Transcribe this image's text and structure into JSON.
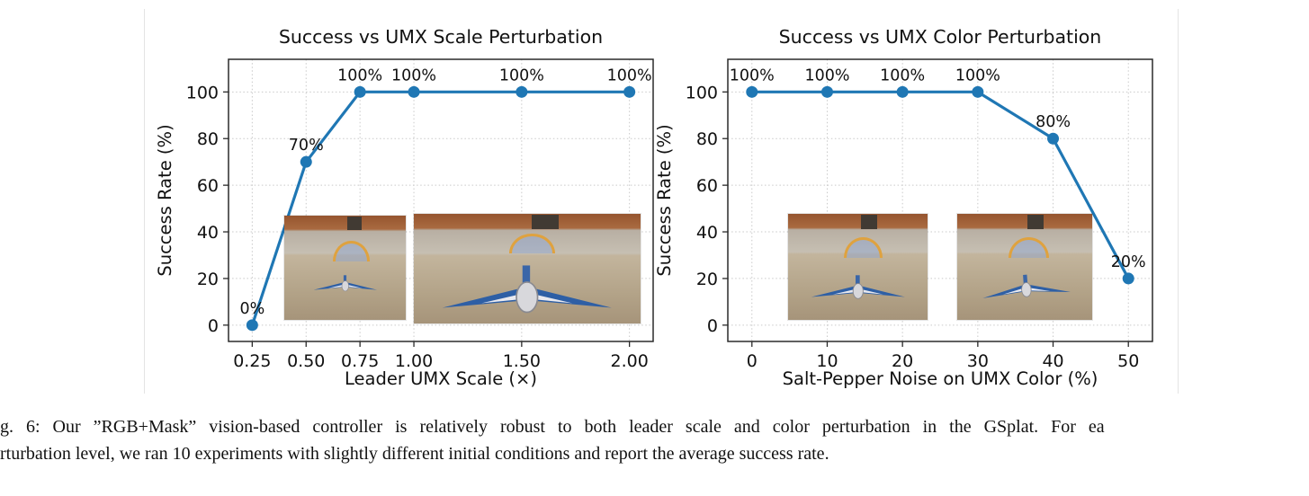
{
  "caption": {
    "line1": "g. 6: Our ”RGB+Mask” vision-based controller is relatively robust to both leader scale and color perturbation in the GSplat. For ea",
    "line2": "rturbation level, we ran 10 experiments with slightly different initial conditions and report the average success rate."
  },
  "chart_data": [
    {
      "type": "line",
      "title": "Success vs UMX Scale Perturbation",
      "xlabel": "Leader UMX Scale (×)",
      "ylabel": "Success Rate (%)",
      "x": [
        0.25,
        0.5,
        0.75,
        1.0,
        1.5,
        2.0
      ],
      "values": [
        0,
        70,
        100,
        100,
        100,
        100
      ],
      "point_labels": [
        "0%",
        "70%",
        "100%",
        "100%",
        "100%",
        "100%"
      ],
      "xticks": [
        0.25,
        0.5,
        0.75,
        1.0,
        1.5,
        2.0
      ],
      "xtick_labels": [
        "0.25",
        "0.50",
        "0.75",
        "1.00",
        "1.50",
        "2.00"
      ],
      "yticks": [
        0,
        20,
        40,
        60,
        80,
        100
      ],
      "ytick_labels": [
        "0",
        "20",
        "40",
        "60",
        "80",
        "100"
      ],
      "xlim": [
        0.14,
        2.11
      ],
      "ylim": [
        -7,
        114
      ],
      "line_color": "#1f77b4",
      "grid": true,
      "legend": null
    },
    {
      "type": "line",
      "title": "Success vs UMX Color Perturbation",
      "xlabel": "Salt-Pepper Noise on UMX Color (%)",
      "ylabel": "Success Rate (%)",
      "x": [
        0,
        10,
        20,
        30,
        40,
        50
      ],
      "values": [
        100,
        100,
        100,
        100,
        80,
        20
      ],
      "point_labels": [
        "100%",
        "100%",
        "100%",
        "100%",
        "80%",
        "20%"
      ],
      "xticks": [
        0,
        10,
        20,
        30,
        40,
        50
      ],
      "xtick_labels": [
        "0",
        "10",
        "20",
        "30",
        "40",
        "50"
      ],
      "yticks": [
        0,
        20,
        40,
        60,
        80,
        100
      ],
      "ytick_labels": [
        "0",
        "20",
        "40",
        "60",
        "80",
        "100"
      ],
      "xlim": [
        -3.2,
        53.2
      ],
      "ylim": [
        -7,
        114
      ],
      "line_color": "#1f77b4",
      "grid": true,
      "legend": null
    }
  ]
}
